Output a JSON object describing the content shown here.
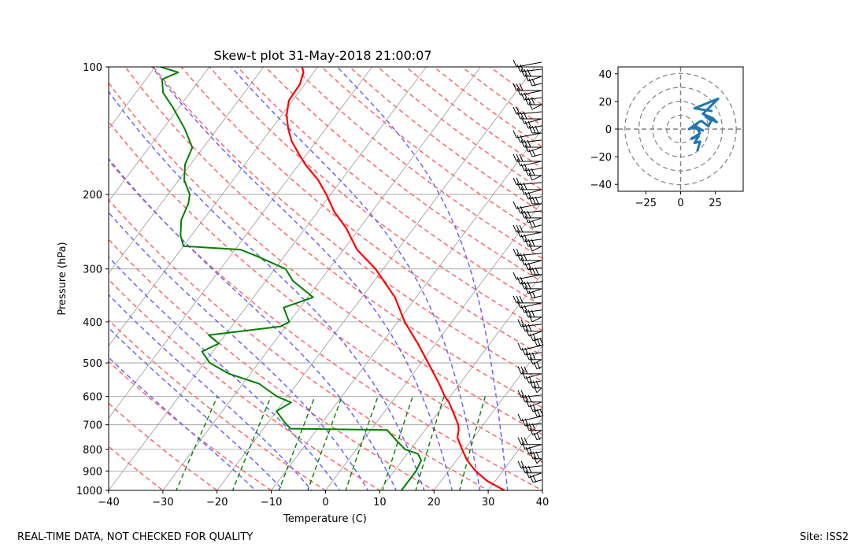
{
  "footer": {
    "quality_note": "REAL-TIME DATA, NOT CHECKED FOR QUALITY",
    "site": "Site: ISS2"
  },
  "chart_data": [
    {
      "type": "skew-t",
      "title": "Skew-t plot 31-May-2018 21:00:07",
      "xlabel": "Temperature (C)",
      "ylabel": "Pressure (hPa)",
      "xlim": [
        -40,
        40
      ],
      "ylim": [
        1000,
        100
      ],
      "x_ticks": [
        -40,
        -30,
        -20,
        -10,
        0,
        10,
        20,
        30,
        40
      ],
      "y_ticks": [
        100,
        200,
        300,
        400,
        500,
        600,
        700,
        800,
        900,
        1000
      ],
      "colors": {
        "temperature": "#ff0000",
        "dewpoint": "#008000",
        "dry_adiabat": "#ff6666",
        "moist_adiabat": "#6666ff",
        "mixing_ratio": "#008000",
        "isotherm": "#999999"
      },
      "temperature": [
        [
          1000,
          33
        ],
        [
          950,
          28.5
        ],
        [
          900,
          25
        ],
        [
          850,
          22
        ],
        [
          800,
          19.5
        ],
        [
          750,
          17
        ],
        [
          720,
          16.2
        ],
        [
          700,
          15.4
        ],
        [
          650,
          12.5
        ],
        [
          620,
          10.6
        ],
        [
          600,
          9.0
        ],
        [
          560,
          6.2
        ],
        [
          500,
          1.3
        ],
        [
          450,
          -3.3
        ],
        [
          400,
          -8.7
        ],
        [
          350,
          -13.9
        ],
        [
          300,
          -21.4
        ],
        [
          270,
          -27.5
        ],
        [
          240,
          -32.5
        ],
        [
          220,
          -36.9
        ],
        [
          200,
          -40.8
        ],
        [
          185,
          -44.3
        ],
        [
          170,
          -48.8
        ],
        [
          160,
          -51.6
        ],
        [
          150,
          -54.5
        ],
        [
          140,
          -56.9
        ],
        [
          130,
          -59.1
        ],
        [
          120,
          -60.7
        ],
        [
          110,
          -60.9
        ],
        [
          103,
          -61.9
        ],
        [
          100,
          -62.9
        ]
      ],
      "dewpoint": [
        [
          1000,
          14
        ],
        [
          960,
          14
        ],
        [
          900,
          14
        ],
        [
          850,
          13.5
        ],
        [
          820,
          12
        ],
        [
          800,
          9
        ],
        [
          760,
          6
        ],
        [
          720,
          3
        ],
        [
          715,
          -15
        ],
        [
          690,
          -17
        ],
        [
          650,
          -20
        ],
        [
          620,
          -18.5
        ],
        [
          600,
          -22
        ],
        [
          560,
          -27
        ],
        [
          530,
          -34
        ],
        [
          500,
          -39
        ],
        [
          470,
          -42
        ],
        [
          450,
          -40
        ],
        [
          430,
          -43
        ],
        [
          410,
          -31
        ],
        [
          400,
          -30
        ],
        [
          390,
          -31
        ],
        [
          370,
          -33
        ],
        [
          350,
          -29
        ],
        [
          320,
          -35
        ],
        [
          300,
          -38
        ],
        [
          280,
          -45
        ],
        [
          270,
          -49
        ],
        [
          265,
          -60
        ],
        [
          250,
          -62
        ],
        [
          230,
          -64
        ],
        [
          210,
          -65
        ],
        [
          200,
          -66
        ],
        [
          185,
          -69
        ],
        [
          170,
          -71
        ],
        [
          155,
          -72
        ],
        [
          140,
          -76
        ],
        [
          125,
          -81
        ],
        [
          115,
          -85
        ],
        [
          107,
          -87
        ],
        [
          103,
          -85
        ],
        [
          100,
          -89
        ]
      ],
      "hodograph": {
        "xlim": [
          -45,
          45
        ],
        "ylim": [
          -45,
          45
        ],
        "x_ticks": [
          -25,
          0,
          25
        ],
        "y_ticks": [
          40,
          20,
          0,
          -20,
          -40
        ],
        "rings": [
          10,
          20,
          30,
          40
        ],
        "u": [
          12,
          14,
          10,
          13,
          8,
          14,
          11,
          16,
          9,
          12,
          6,
          13,
          15,
          20,
          22,
          18,
          26,
          23,
          16,
          27,
          10,
          23
        ],
        "v": [
          -16,
          -9,
          -10,
          -5,
          -7,
          -3,
          2,
          -1,
          1,
          4,
          0,
          5,
          6,
          2,
          6,
          9,
          5,
          8,
          11,
          22,
          15,
          13
        ],
        "color": "#1f77b4"
      }
    }
  ]
}
